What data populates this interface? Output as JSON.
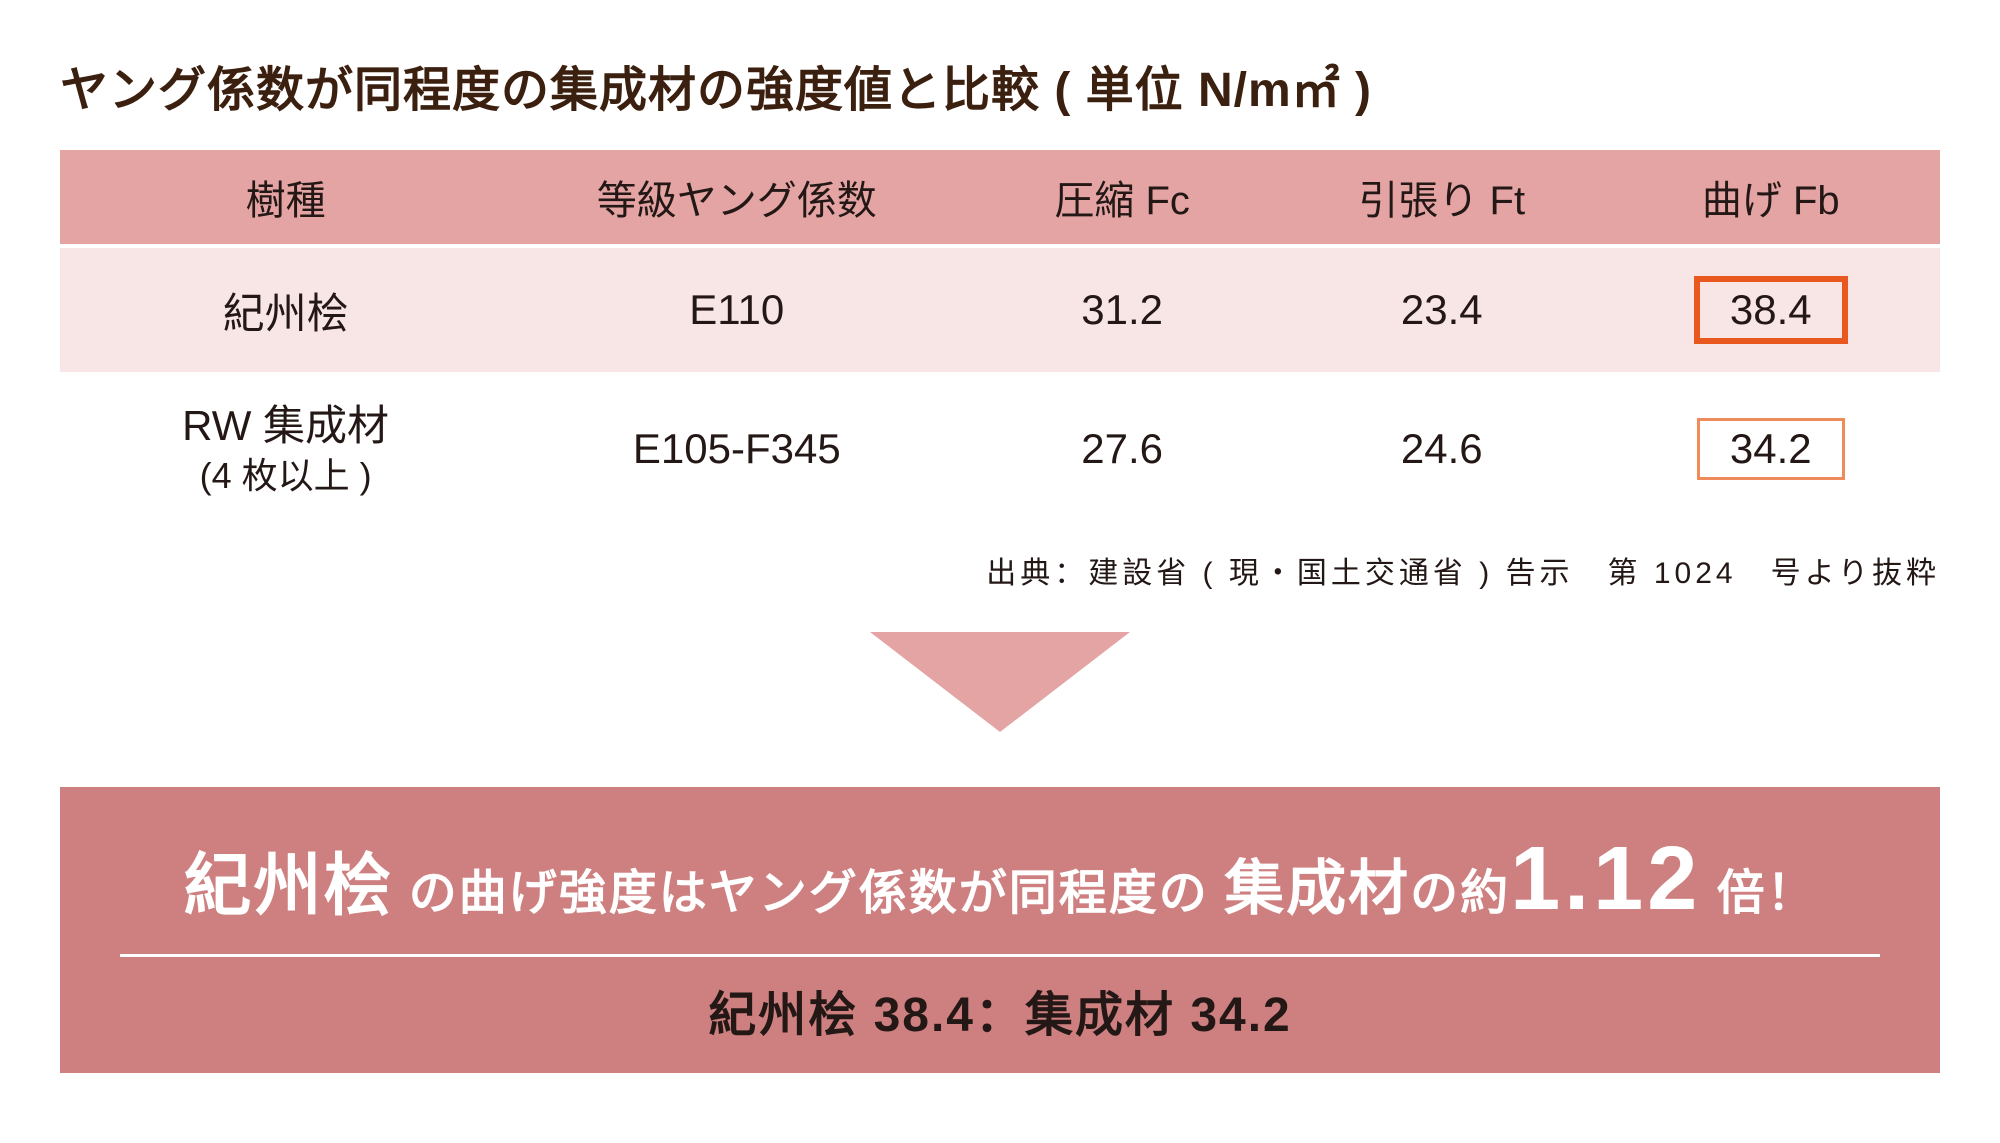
{
  "colors": {
    "title_text": "#3b1f0f",
    "table_header_bg": "#e4a4a4",
    "table_row1_bg": "#f8e6e6",
    "table_row2_bg": "#ffffff",
    "highlight_border_strong": "#e8581f",
    "highlight_border_light": "#ef8a5a",
    "arrow_fill": "#e4a4a4",
    "banner_bg": "#ce8080",
    "banner_bottom_text": "#231815"
  },
  "title": "ヤング係数が同程度の集成材の強度値と比較 ( 単位 N/m㎡ )",
  "table": {
    "headers": [
      "樹種",
      "等級ヤング係数",
      "圧縮 Fc",
      "引張り Ft",
      "曲げ Fb"
    ],
    "row1": {
      "species": "紀州桧",
      "grade": "E110",
      "fc": "31.2",
      "ft": "23.4",
      "fb": "38.4",
      "highlight_border_width": 6
    },
    "row2": {
      "species_main": "RW 集成材",
      "species_sub": "(4 枚以上 )",
      "grade": "E105-F345",
      "fc": "27.6",
      "ft": "24.6",
      "fb": "34.2",
      "highlight_border_width": 3
    }
  },
  "source": "出典：建設省 ( 現・国土交通省 ) 告示　第 1024　号より抜粋",
  "banner": {
    "seg1_big": "紀州桧",
    "seg2": " の曲げ強度はヤング係数が同程度の ",
    "seg3_big": "集成材",
    "seg4": "の約",
    "ratio": "1.12",
    "seg5": " 倍！",
    "bottom": "紀州桧 38.4：集成材 34.2"
  }
}
